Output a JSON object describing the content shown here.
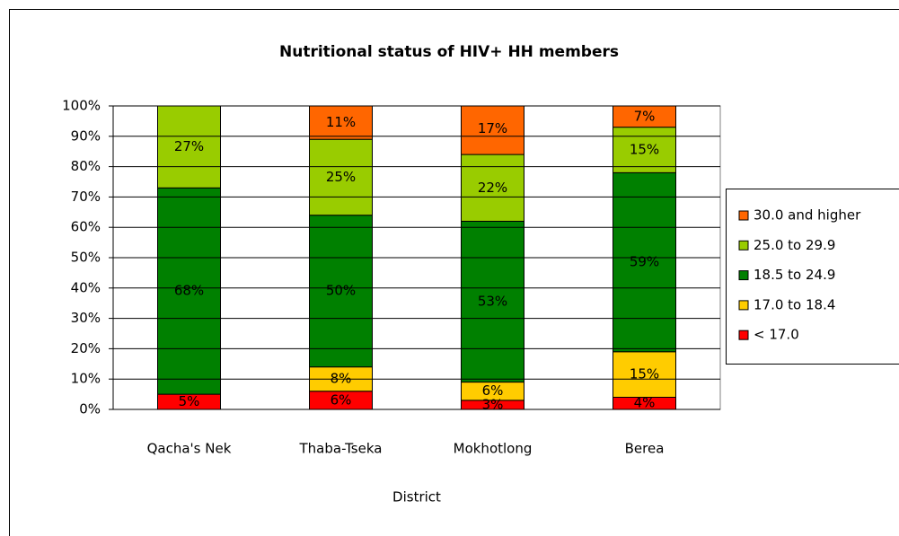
{
  "chart_data": {
    "type": "stacked_bar",
    "title": "Nutritional status of HIV+ HH members",
    "x_label": "District",
    "categories": [
      "Qacha's Nek",
      "Thaba-Tseka",
      "Mokhotlong",
      "Berea"
    ],
    "series": [
      {
        "name": "< 17.0",
        "color": "#ff0000",
        "values": [
          5,
          6,
          3,
          4
        ],
        "value_labels": [
          "5%",
          "6%",
          "3%",
          "4%"
        ]
      },
      {
        "name": "17.0 to 18.4",
        "color": "#ffcc00",
        "values": [
          0,
          8,
          6,
          15
        ],
        "value_labels": [
          null,
          "8%",
          "6%",
          "15%"
        ]
      },
      {
        "name": "18.5 to 24.9",
        "color": "#008000",
        "values": [
          68,
          50,
          53,
          59
        ],
        "value_labels": [
          "68%",
          "50%",
          "53%",
          "59%"
        ]
      },
      {
        "name": "25.0 to 29.9",
        "color": "#99cc00",
        "values": [
          27,
          25,
          22,
          15
        ],
        "value_labels": [
          "27%",
          "25%",
          "22%",
          "15%"
        ]
      },
      {
        "name": "30.0 and higher",
        "color": "#ff6600",
        "values": [
          0,
          11,
          17,
          7
        ],
        "value_labels": [
          null,
          "11%",
          "17%",
          "7%"
        ]
      }
    ],
    "ylim": [
      0,
      100
    ],
    "yticks": [
      {
        "value": 0,
        "label": "0%"
      },
      {
        "value": 10,
        "label": "10%"
      },
      {
        "value": 20,
        "label": "20%"
      },
      {
        "value": 30,
        "label": "30%"
      },
      {
        "value": 40,
        "label": "40%"
      },
      {
        "value": 50,
        "label": "50%"
      },
      {
        "value": 60,
        "label": "60%"
      },
      {
        "value": 70,
        "label": "70%"
      },
      {
        "value": 80,
        "label": "80%"
      },
      {
        "value": 90,
        "label": "90%"
      },
      {
        "value": 100,
        "label": "100%"
      }
    ],
    "grid": true,
    "legend": "right"
  }
}
